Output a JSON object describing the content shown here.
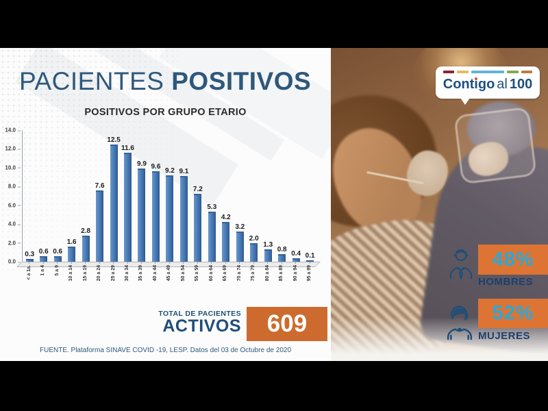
{
  "header": {
    "title_regular": "PACIENTES",
    "title_bold": "POSITIVOS"
  },
  "chart_data": {
    "type": "bar",
    "title": "POSITIVOS POR GRUPO ETARIO",
    "categories": [
      "< a 1a.",
      "1 a 4",
      "5 a 9",
      "10 a 14",
      "15 a 19",
      "20 a 24",
      "25 a 29",
      "30 a 34",
      "35 a 39",
      "40 a 44",
      "45 a 49",
      "50 a 54",
      "55 a 59",
      "60 a 64",
      "65 a 69",
      "70 a 74",
      "75 a 79",
      "80 a 84",
      "85 a 89",
      "90 a 94",
      "95 a 99"
    ],
    "values": [
      0.3,
      0.6,
      0.6,
      1.6,
      2.8,
      7.6,
      12.5,
      11.6,
      9.9,
      9.6,
      9.2,
      9.1,
      7.2,
      5.3,
      4.2,
      3.2,
      2.0,
      1.3,
      0.8,
      0.4,
      0.1
    ],
    "value_labels": [
      "0.3",
      "0.6",
      "0.6",
      "1.6",
      "2.8",
      "7.6",
      "12.5",
      "11.6",
      "9.9",
      "9.6",
      "9.2",
      "9.1",
      "7.2",
      "5.3",
      "4.2",
      "3.2",
      "2.0",
      "1.3",
      "0.8",
      "0.4",
      "0.1"
    ],
    "xlabel": "",
    "ylabel": "",
    "ylim": [
      0,
      14
    ],
    "yticks": [
      "0.0",
      "2.0",
      "4.0",
      "6.0",
      "8.0",
      "10.0",
      "12.0",
      "14.0"
    ],
    "grid": false,
    "legend": "none",
    "bar_color": "#4a7db8"
  },
  "total": {
    "label_top": "TOTAL DE PACIENTES",
    "label_bottom": "ACTIVOS",
    "value": "609"
  },
  "source": "FUENTE. Plataforma SINAVE COVID -19, LESP. Datos del 03 de Octubre de 2020",
  "logo": {
    "word_bold": "Contigo",
    "word_light": "al",
    "word_number": "100",
    "dash_colors": [
      "#8c2333",
      "#dfbe62",
      "#66b2d6",
      "#83a94c",
      "#bd7b44"
    ]
  },
  "stats": [
    {
      "value": "48%",
      "label": "HOMBRES",
      "icon": "man-icon"
    },
    {
      "value": "52%",
      "label": "MUJERES",
      "icon": "woman-icon"
    }
  ],
  "colors": {
    "title_blue": "#2e587c",
    "bar_blue": "#4a7db8",
    "accent_orange": "#cd6b2f",
    "stat_orange": "#dd7434",
    "value_cyan": "#2aa9da",
    "navy": "#1c3f6e"
  }
}
